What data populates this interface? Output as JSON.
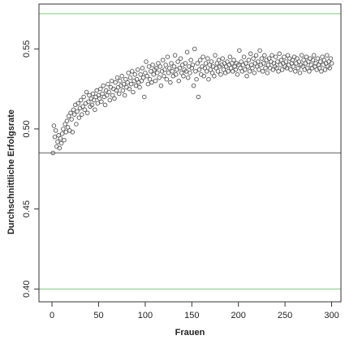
{
  "chart_data": {
    "type": "scatter",
    "xlabel": "Frauen",
    "ylabel": "Durchschnittliche Erfolgsrate",
    "xlim": [
      -14,
      310
    ],
    "ylim": [
      0.392,
      0.578
    ],
    "xticks": [
      0,
      50,
      100,
      150,
      200,
      250,
      300
    ],
    "yticks": [
      {
        "value": 0.4,
        "label": "0.40"
      },
      {
        "value": 0.45,
        "label": "0.45"
      },
      {
        "value": 0.5,
        "label": "0.50"
      },
      {
        "value": 0.55,
        "label": "0.55"
      }
    ],
    "hlines": [
      {
        "value": 0.572,
        "color": "#a8dca8"
      },
      {
        "value": 0.485,
        "color": "#8c8c8c"
      },
      {
        "value": 0.4,
        "color": "#a8dca8"
      }
    ],
    "series": [
      {
        "color": "#555555",
        "x": [
          1,
          2,
          3,
          4,
          5,
          6,
          7,
          8,
          9,
          10,
          11,
          12,
          13,
          14,
          15,
          16,
          17,
          18,
          19,
          20,
          21,
          22,
          23,
          24,
          25,
          26,
          27,
          28,
          29,
          30,
          31,
          32,
          33,
          34,
          35,
          36,
          37,
          38,
          39,
          40,
          41,
          42,
          43,
          44,
          45,
          46,
          47,
          48,
          49,
          50,
          51,
          52,
          53,
          54,
          55,
          56,
          57,
          58,
          59,
          60,
          61,
          62,
          63,
          64,
          65,
          66,
          67,
          68,
          69,
          70,
          71,
          72,
          73,
          74,
          75,
          76,
          77,
          78,
          79,
          80,
          81,
          82,
          83,
          84,
          85,
          86,
          87,
          88,
          89,
          90,
          91,
          92,
          93,
          94,
          95,
          96,
          97,
          98,
          99,
          100,
          101,
          102,
          103,
          104,
          105,
          106,
          107,
          108,
          109,
          110,
          111,
          112,
          113,
          114,
          115,
          116,
          117,
          118,
          119,
          120,
          121,
          122,
          123,
          124,
          125,
          126,
          127,
          128,
          129,
          130,
          131,
          132,
          133,
          134,
          135,
          136,
          137,
          138,
          139,
          140,
          141,
          142,
          143,
          144,
          145,
          146,
          147,
          148,
          149,
          150,
          151,
          152,
          153,
          154,
          155,
          156,
          157,
          158,
          159,
          160,
          161,
          162,
          163,
          164,
          165,
          166,
          167,
          168,
          169,
          170,
          171,
          172,
          173,
          174,
          175,
          176,
          177,
          178,
          179,
          180,
          181,
          182,
          183,
          184,
          185,
          186,
          187,
          188,
          189,
          190,
          191,
          192,
          193,
          194,
          195,
          196,
          197,
          198,
          199,
          200,
          201,
          202,
          203,
          204,
          205,
          206,
          207,
          208,
          209,
          210,
          211,
          212,
          213,
          214,
          215,
          216,
          217,
          218,
          219,
          220,
          221,
          222,
          223,
          224,
          225,
          226,
          227,
          228,
          229,
          230,
          231,
          232,
          233,
          234,
          235,
          236,
          237,
          238,
          239,
          240,
          241,
          242,
          243,
          244,
          245,
          246,
          247,
          248,
          249,
          250,
          251,
          252,
          253,
          254,
          255,
          256,
          257,
          258,
          259,
          260,
          261,
          262,
          263,
          264,
          265,
          266,
          267,
          268,
          269,
          270,
          271,
          272,
          273,
          274,
          275,
          276,
          277,
          278,
          279,
          280,
          281,
          282,
          283,
          284,
          285,
          286,
          287,
          288,
          289,
          290,
          291,
          292,
          293,
          294,
          295,
          296,
          297,
          298,
          299,
          300
        ],
        "values": [
          0.485,
          0.502,
          0.495,
          0.499,
          0.489,
          0.492,
          0.496,
          0.488,
          0.494,
          0.491,
          0.497,
          0.5,
          0.493,
          0.503,
          0.498,
          0.505,
          0.501,
          0.508,
          0.499,
          0.51,
          0.506,
          0.498,
          0.512,
          0.509,
          0.515,
          0.503,
          0.511,
          0.516,
          0.507,
          0.513,
          0.518,
          0.509,
          0.514,
          0.52,
          0.512,
          0.516,
          0.523,
          0.51,
          0.517,
          0.521,
          0.514,
          0.519,
          0.515,
          0.522,
          0.518,
          0.512,
          0.52,
          0.524,
          0.516,
          0.521,
          0.519,
          0.525,
          0.517,
          0.522,
          0.527,
          0.52,
          0.515,
          0.524,
          0.521,
          0.528,
          0.523,
          0.518,
          0.526,
          0.53,
          0.521,
          0.525,
          0.519,
          0.529,
          0.524,
          0.532,
          0.526,
          0.522,
          0.53,
          0.527,
          0.533,
          0.524,
          0.528,
          0.521,
          0.531,
          0.526,
          0.529,
          0.535,
          0.525,
          0.532,
          0.528,
          0.536,
          0.523,
          0.53,
          0.534,
          0.527,
          0.531,
          0.537,
          0.529,
          0.526,
          0.534,
          0.53,
          0.538,
          0.532,
          0.52,
          0.535,
          0.542,
          0.533,
          0.528,
          0.539,
          0.531,
          0.536,
          0.529,
          0.54,
          0.534,
          0.537,
          0.53,
          0.538,
          0.535,
          0.541,
          0.532,
          0.539,
          0.527,
          0.536,
          0.543,
          0.533,
          0.537,
          0.54,
          0.531,
          0.545,
          0.535,
          0.538,
          0.529,
          0.541,
          0.536,
          0.533,
          0.539,
          0.546,
          0.534,
          0.537,
          0.542,
          0.53,
          0.538,
          0.544,
          0.535,
          0.54,
          0.533,
          0.537,
          0.541,
          0.536,
          0.548,
          0.532,
          0.539,
          0.535,
          0.543,
          0.538,
          0.54,
          0.527,
          0.55,
          0.536,
          0.531,
          0.541,
          0.52,
          0.537,
          0.543,
          0.534,
          0.539,
          0.545,
          0.533,
          0.538,
          0.541,
          0.536,
          0.544,
          0.531,
          0.54,
          0.537,
          0.542,
          0.535,
          0.539,
          0.533,
          0.546,
          0.538,
          0.541,
          0.536,
          0.543,
          0.539,
          0.534,
          0.54,
          0.544,
          0.537,
          0.541,
          0.535,
          0.539,
          0.542,
          0.536,
          0.54,
          0.545,
          0.538,
          0.541,
          0.536,
          0.543,
          0.539,
          0.537,
          0.541,
          0.534,
          0.54,
          0.549,
          0.538,
          0.542,
          0.536,
          0.54,
          0.545,
          0.537,
          0.541,
          0.533,
          0.539,
          0.543,
          0.536,
          0.547,
          0.54,
          0.538,
          0.544,
          0.535,
          0.541,
          0.546,
          0.539,
          0.542,
          0.537,
          0.549,
          0.54,
          0.544,
          0.536,
          0.541,
          0.546,
          0.538,
          0.543,
          0.535,
          0.54,
          0.544,
          0.538,
          0.542,
          0.546,
          0.537,
          0.541,
          0.539,
          0.545,
          0.538,
          0.542,
          0.536,
          0.547,
          0.54,
          0.543,
          0.537,
          0.541,
          0.545,
          0.539,
          0.542,
          0.538,
          0.546,
          0.54,
          0.544,
          0.537,
          0.541,
          0.543,
          0.539,
          0.545,
          0.536,
          0.541,
          0.544,
          0.538,
          0.542,
          0.535,
          0.54,
          0.546,
          0.539,
          0.543,
          0.537,
          0.541,
          0.545,
          0.538,
          0.542,
          0.536,
          0.544,
          0.54,
          0.538,
          0.543,
          0.546,
          0.539,
          0.541,
          0.537,
          0.544,
          0.54,
          0.538,
          0.542,
          0.536,
          0.545,
          0.54,
          0.543,
          0.537,
          0.541,
          0.546,
          0.539,
          0.542,
          0.538,
          0.544,
          0.541
        ]
      }
    ]
  }
}
